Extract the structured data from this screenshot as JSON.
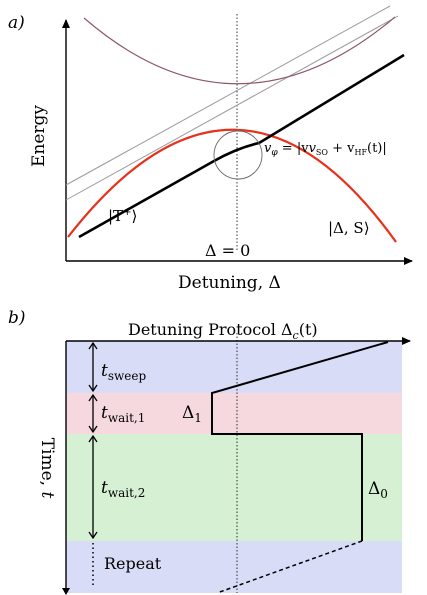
{
  "panel_a": {
    "label": "a)",
    "ylabel": "Energy",
    "xlabel": "Detuning, Δ",
    "zero_label": "Δ = 0",
    "velocity_label": "vφ = |vSO + vHF(t)|",
    "velocity_main": "v",
    "velocity_phi": "φ",
    "velocity_eq": " = |v",
    "velocity_so": "SO",
    "velocity_plus": " + v",
    "velocity_hf": "HF",
    "velocity_t": "(t)|",
    "state_left": "|T+⟩",
    "state_left_open": "|T",
    "state_left_sub": "+",
    "state_left_close": "⟩",
    "state_right": "|Δ, S⟩",
    "colors": {
      "red_branch": "#e8311b",
      "upper_branch": "#8e5a64",
      "grey_lines": "#9a9a9a"
    }
  },
  "panel_b": {
    "label": "b)",
    "title": "Detuning Protocol Δc(t)",
    "title_main": "Detuning Protocol Δ",
    "title_sub": "c",
    "title_tail": "(t)",
    "ylabel": "Time, t",
    "ylabel_main": "Time, ",
    "ylabel_var": "t",
    "phases": [
      {
        "name": "sweep",
        "label_main": "t",
        "label_sub": "sweep",
        "color": "#d9dcf6"
      },
      {
        "name": "wait1",
        "label_main": "t",
        "label_sub": "wait,1",
        "color": "#f6d9df"
      },
      {
        "name": "wait2",
        "label_main": "t",
        "label_sub": "wait,2",
        "color": "#d6f0d4"
      },
      {
        "name": "repeat",
        "label_main": "Repeat",
        "label_sub": "",
        "color": "#d9dcf6"
      }
    ],
    "delta1_main": "Δ",
    "delta1_sub": "1",
    "delta0_main": "Δ",
    "delta0_sub": "0"
  }
}
